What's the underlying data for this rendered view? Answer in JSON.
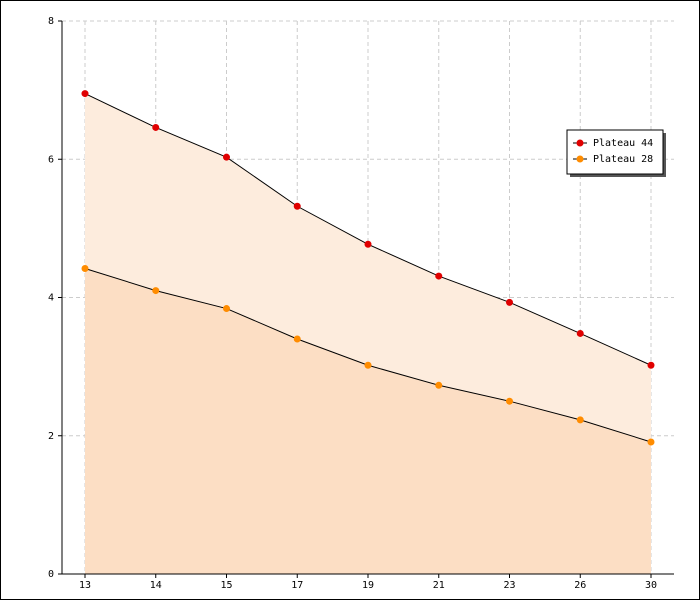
{
  "chart_data": {
    "type": "area",
    "categories": [
      "13",
      "14",
      "15",
      "17",
      "19",
      "21",
      "23",
      "26",
      "30"
    ],
    "series": [
      {
        "name": "Plateau 44",
        "color": "#e00000",
        "fill": "#fdecdd",
        "values": [
          6.95,
          6.46,
          6.03,
          5.32,
          4.77,
          4.31,
          3.93,
          3.48,
          3.02
        ]
      },
      {
        "name": "Plateau 28",
        "color": "#ff8c00",
        "fill": "#fcdec4",
        "values": [
          4.42,
          4.1,
          3.84,
          3.4,
          3.02,
          2.73,
          2.5,
          2.23,
          1.91
        ]
      }
    ],
    "ylim": [
      0,
      8
    ],
    "yticks": [
      0,
      2,
      4,
      6,
      8
    ],
    "grid": true,
    "legend": "upper right"
  }
}
